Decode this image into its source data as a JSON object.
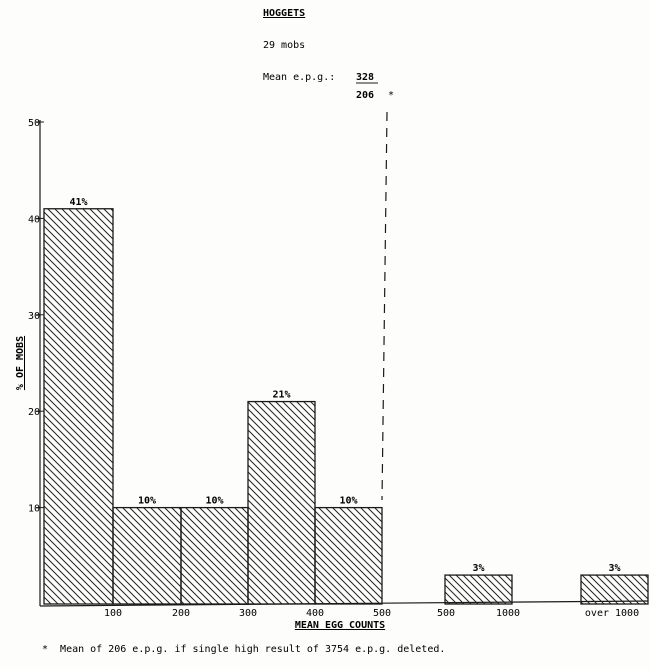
{
  "header": {
    "title": "HOGGETS",
    "mobs": "29 mobs",
    "mean_label": "Mean e.p.g.:",
    "mean_value": "328",
    "mean_alt": "206",
    "mean_alt_marker": "*"
  },
  "footnote": "*  Mean of 206 e.p.g. if single high result of 3754 e.p.g. deleted.",
  "chart_data": {
    "type": "bar",
    "title": "HOGGETS",
    "xlabel": "MEAN EGG COUNTS",
    "ylabel": "% OF MOBS",
    "ylim": [
      0,
      50
    ],
    "yticks": [
      "10",
      "20",
      "30",
      "40",
      "50"
    ],
    "categories": [
      "0-100",
      "100-200",
      "200-300",
      "300-400",
      "400-500",
      "500-1000",
      "over 1000"
    ],
    "values": [
      41,
      10,
      10,
      21,
      10,
      3,
      3
    ],
    "value_labels": [
      "41%",
      "10%",
      "10%",
      "21%",
      "10%",
      "3%",
      "3%"
    ],
    "x_tick_labels": [
      "100",
      "200",
      "300",
      "400",
      "500",
      "500",
      "1000",
      "over 1000"
    ],
    "reference_line": {
      "value": 328,
      "style": "dashed"
    },
    "hatched": true,
    "grid": false
  }
}
